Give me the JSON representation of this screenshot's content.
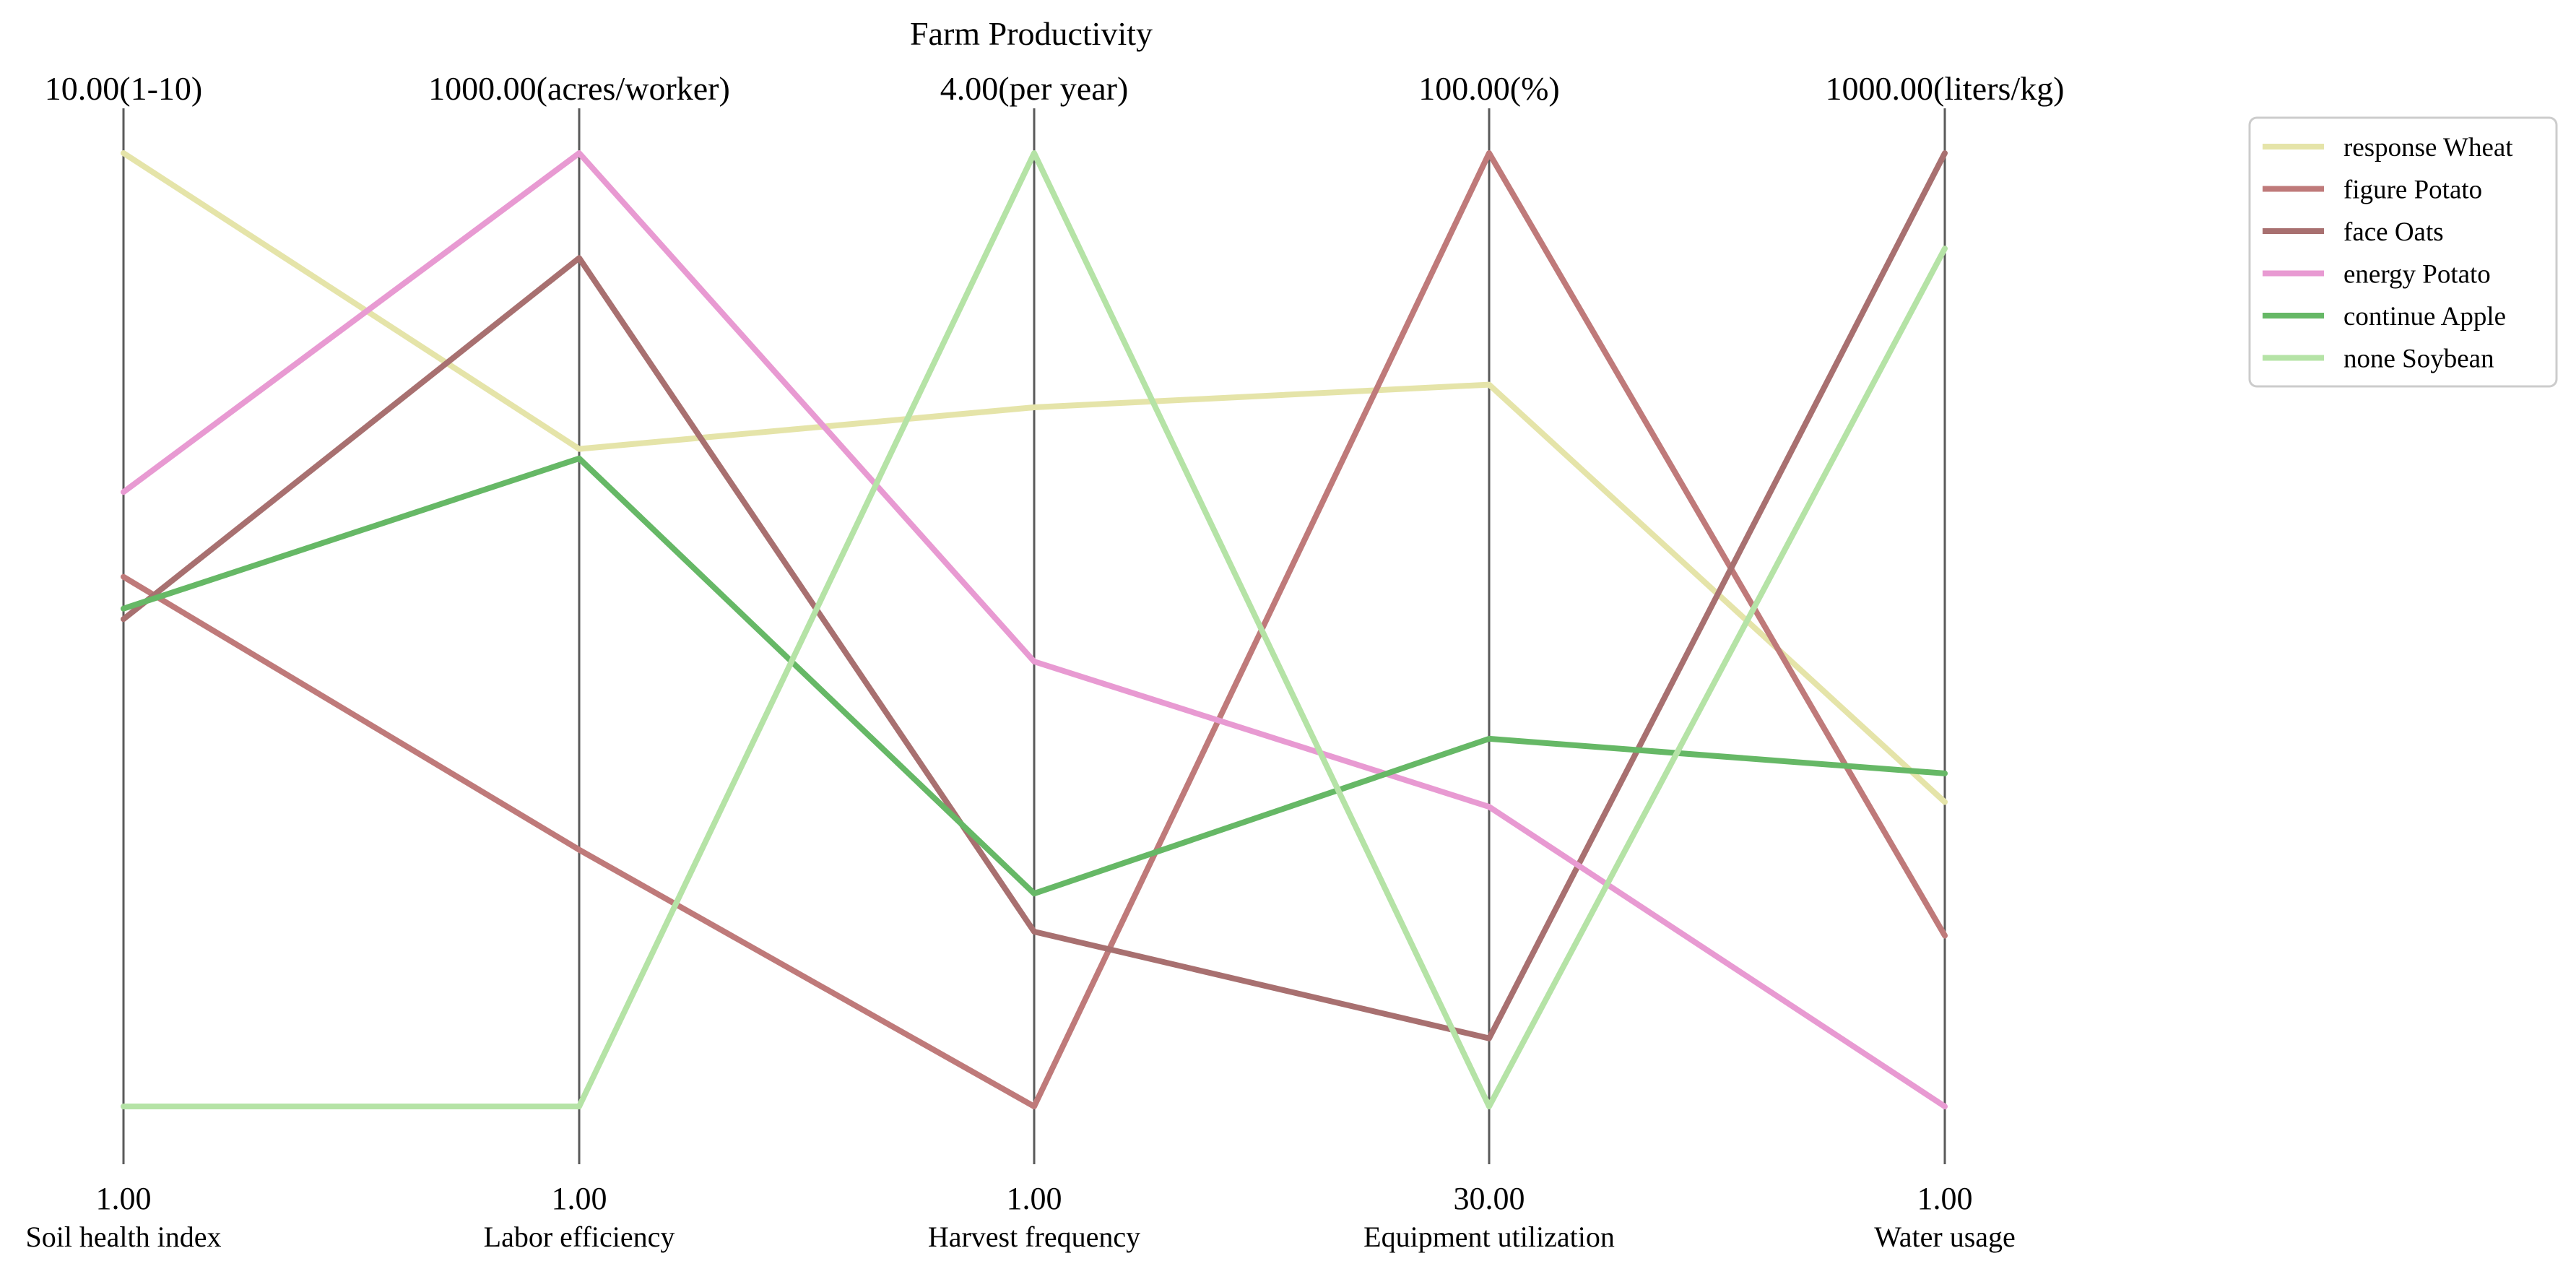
{
  "chart_data": {
    "type": "parallel-coordinates",
    "title": "Farm Productivity",
    "axes": [
      {
        "name": "Soil health index",
        "min": 1,
        "max": 10,
        "min_label": "1.00",
        "max_label": "10.00(1-10)"
      },
      {
        "name": "Labor efficiency",
        "min": 1,
        "max": 1000,
        "min_label": "1.00",
        "max_label": "1000.00(acres/worker)"
      },
      {
        "name": "Harvest frequency",
        "min": 1,
        "max": 4,
        "min_label": "1.00",
        "max_label": "4.00(per year)"
      },
      {
        "name": "Equipment utilization",
        "min": 30,
        "max": 100,
        "min_label": "30.00",
        "max_label": "100.00(%)"
      },
      {
        "name": "Water usage",
        "min": 1,
        "max": 1000,
        "min_label": "1.00",
        "max_label": "1000.00(liters/kg)"
      }
    ],
    "legend_position": "top-right",
    "grid": false,
    "series": [
      {
        "name": "response  Wheat",
        "color": "#e5e4a9",
        "values": [
          10.0,
          690,
          3.2,
          83,
          320
        ]
      },
      {
        "name": "figure  Potato",
        "color": "#bf7a7a",
        "values": [
          6.0,
          270,
          1.0,
          100,
          180
        ]
      },
      {
        "name": "face  Oats",
        "color": "#a87070",
        "values": [
          5.6,
          890,
          1.55,
          35,
          1000
        ]
      },
      {
        "name": "energy  Potato",
        "color": "#e89ad2",
        "values": [
          6.8,
          1000,
          2.4,
          52,
          1
        ]
      },
      {
        "name": "continue  Apple",
        "color": "#66b866",
        "values": [
          5.7,
          680,
          1.67,
          57,
          350
        ]
      },
      {
        "name": "none  Soybean",
        "color": "#b5e3a6",
        "values": [
          1.0,
          1,
          4.0,
          30,
          900
        ]
      }
    ]
  }
}
